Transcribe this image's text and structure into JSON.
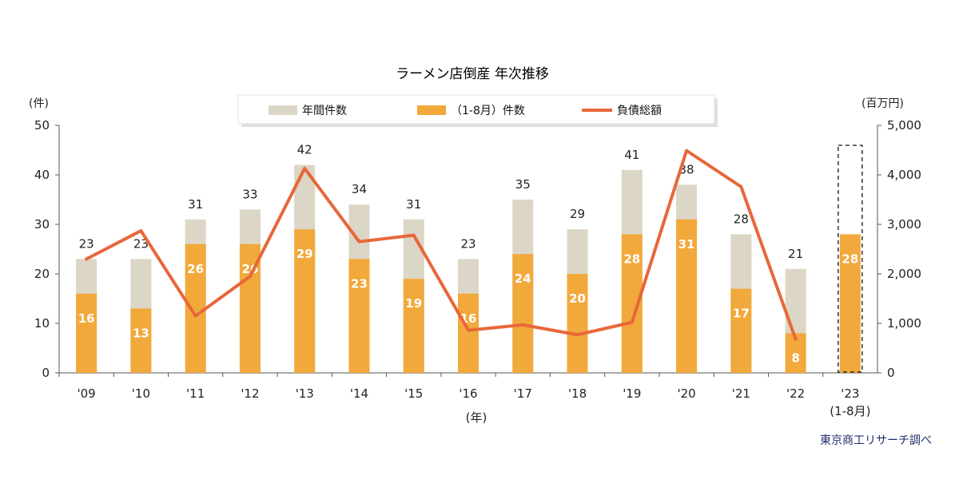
{
  "chart_data": {
    "type": "bar",
    "title": "ラーメン店倒産 年次推移",
    "categories": [
      "'09",
      "'10",
      "'11",
      "'12",
      "'13",
      "'14",
      "'15",
      "'16",
      "'17",
      "'18",
      "'19",
      "'20",
      "'21",
      "'22",
      "'23"
    ],
    "last_category_sub": "(1-8月)",
    "xlabel": "(年)",
    "ylabel_left": "(件)",
    "ylabel_right": "(百万円)",
    "ylim_left": [
      0,
      50
    ],
    "ylim_right": [
      0,
      5000
    ],
    "yticks_left": [
      "0",
      "10",
      "20",
      "30",
      "40",
      "50"
    ],
    "yticks_right": [
      "0",
      "1,000",
      "2,000",
      "3,000",
      "4,000",
      "5,000"
    ],
    "legend_position": "top-center",
    "series": [
      {
        "name": "年間件数",
        "type": "bar",
        "color": "#dcd6c6",
        "values": [
          23,
          23,
          31,
          33,
          42,
          34,
          31,
          23,
          35,
          29,
          41,
          38,
          28,
          21,
          null
        ]
      },
      {
        "name": "（1-8月）件数",
        "type": "bar",
        "color": "#f2a93b",
        "values": [
          16,
          13,
          26,
          26,
          29,
          23,
          19,
          16,
          24,
          20,
          28,
          31,
          17,
          8,
          28
        ]
      },
      {
        "name": "負債総額",
        "type": "line",
        "axis": "right",
        "color": "#e8673a",
        "values": [
          2300,
          2870,
          1150,
          1950,
          4130,
          2650,
          2780,
          860,
          970,
          770,
          1020,
          4490,
          3760,
          680,
          null
        ]
      }
    ],
    "source": "東京商工リサーチ調べ"
  }
}
